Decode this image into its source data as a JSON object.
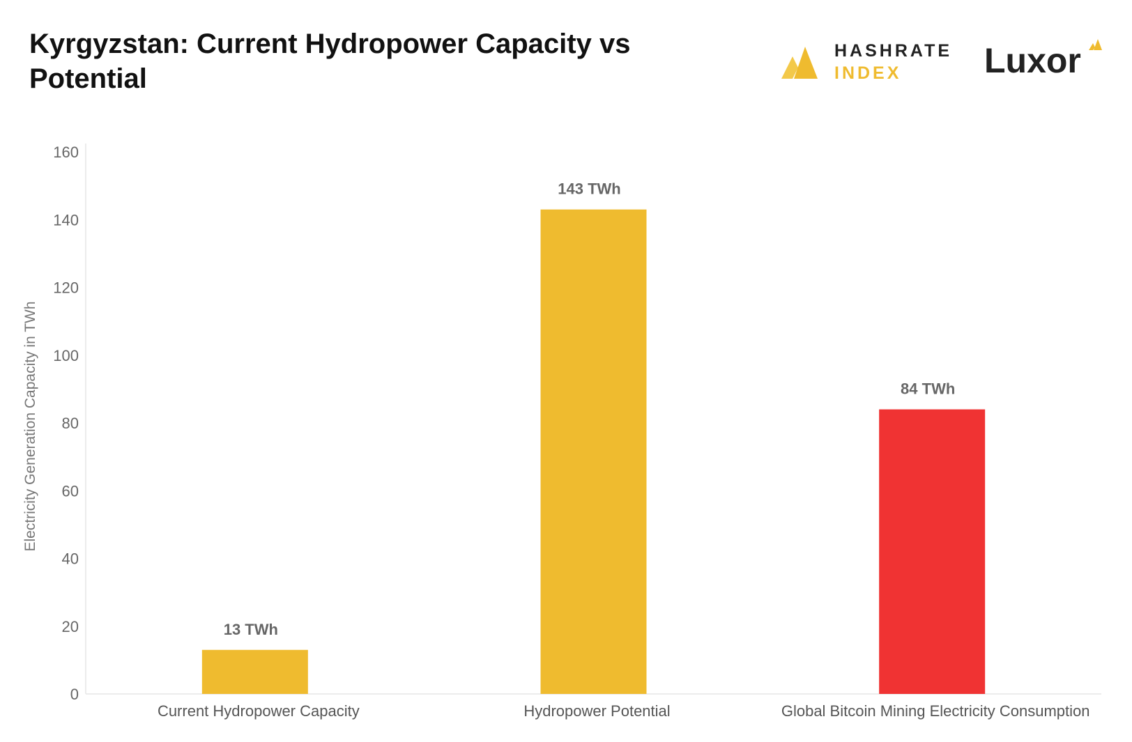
{
  "title": "Kyrgyzstan: Current Hydropower Capacity vs Potential",
  "logos": {
    "hashrate_line1": "HASHRATE",
    "hashrate_line2": "INDEX",
    "luxor": "Luxor"
  },
  "colors": {
    "gold": "#efbb2f",
    "red": "#f03333",
    "text_dark": "#111111",
    "axis_text": "#666666"
  },
  "chart_data": {
    "type": "bar",
    "categories": [
      "Current Hydropower Capacity",
      "Hydropower Potential",
      "Global Bitcoin Mining Electricity Consumption"
    ],
    "values": [
      13,
      143,
      84
    ],
    "data_labels": [
      "13 TWh",
      "143 TWh",
      "84 TWh"
    ],
    "bar_colors": [
      "#efbb2f",
      "#efbb2f",
      "#f03333"
    ],
    "ylabel": "Electricity Generation Capacity in TWh",
    "xlabel": "",
    "ylim": [
      0,
      160
    ],
    "yticks": [
      0,
      20,
      40,
      60,
      80,
      100,
      120,
      140,
      160
    ],
    "grid": false,
    "legend": "none"
  }
}
